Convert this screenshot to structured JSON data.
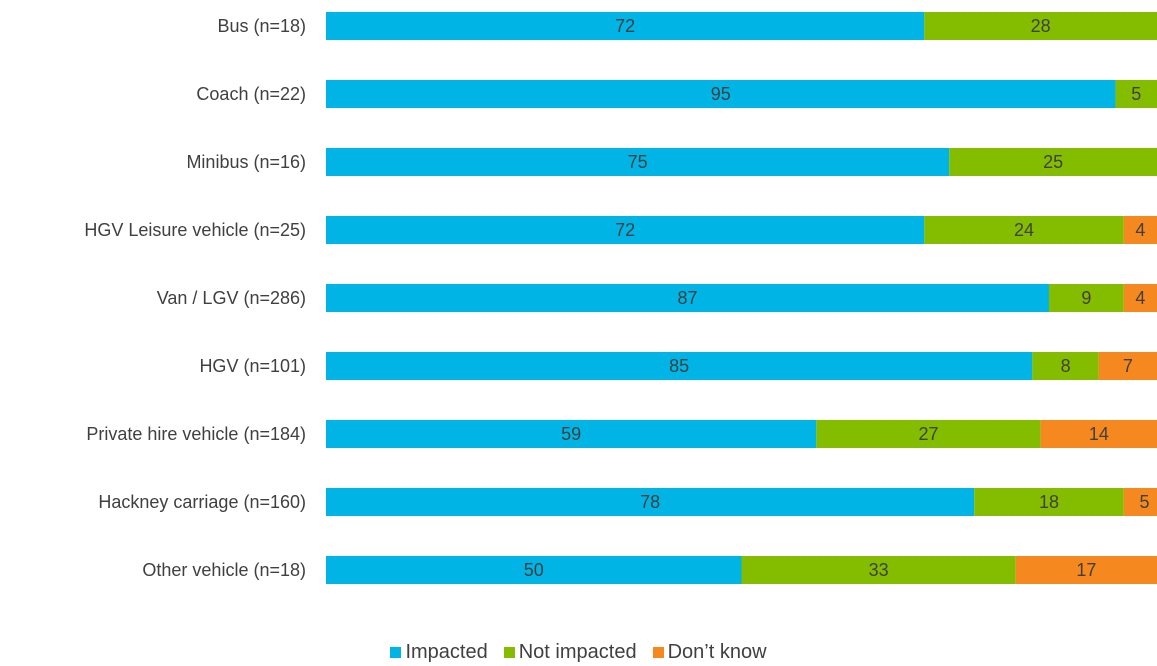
{
  "chart_data": {
    "type": "bar",
    "orientation": "horizontal",
    "stacked": true,
    "categories": [
      "Bus (n=18)",
      "Coach (n=22)",
      "Minibus (n=16)",
      "HGV Leisure vehicle (n=25)",
      "Van / LGV (n=286)",
      "HGV (n=101)",
      "Private hire vehicle (n=184)",
      "Hackney carriage (n=160)",
      "Other vehicle (n=18)"
    ],
    "series": [
      {
        "name": "Impacted",
        "color": "#00B4E6",
        "values": [
          72,
          95,
          75,
          72,
          87,
          85,
          59,
          78,
          50
        ]
      },
      {
        "name": "Not impacted",
        "color": "#84BD00",
        "values": [
          28,
          5,
          25,
          24,
          9,
          8,
          27,
          18,
          33
        ]
      },
      {
        "name": "Don’t know",
        "color": "#F5891F",
        "values": [
          null,
          null,
          null,
          4,
          4,
          7,
          14,
          5,
          17
        ]
      }
    ],
    "xlim": [
      0,
      100
    ],
    "title": "",
    "xlabel": "",
    "ylabel": "",
    "grid": false,
    "legend_position": "bottom"
  }
}
